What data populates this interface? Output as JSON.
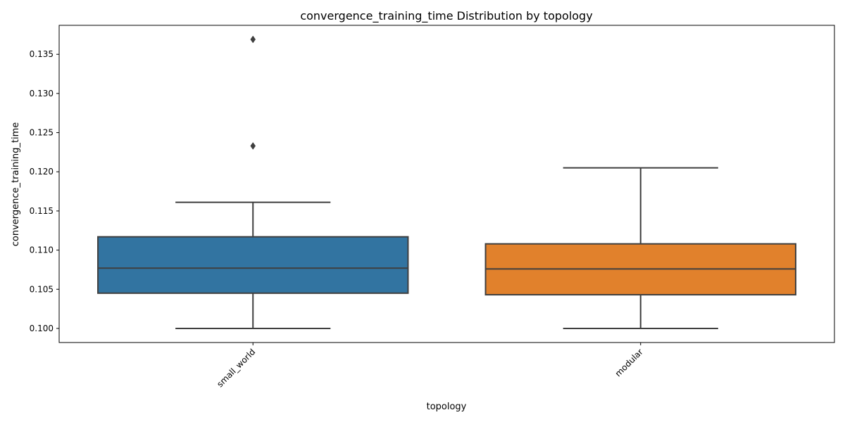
{
  "chart_data": {
    "type": "box",
    "title": "convergence_training_time Distribution by topology",
    "xlabel": "topology",
    "ylabel": "convergence_training_time",
    "categories": [
      "small_world",
      "modular"
    ],
    "ylim": [
      0.0982,
      0.1387
    ],
    "yticks": [
      "0.100",
      "0.105",
      "0.110",
      "0.115",
      "0.120",
      "0.125",
      "0.130",
      "0.135"
    ],
    "ytick_values": [
      0.1,
      0.105,
      0.11,
      0.115,
      0.12,
      0.125,
      0.13,
      0.135
    ],
    "grid": false,
    "legend": "none",
    "boxes": [
      {
        "category": "small_world",
        "color": "#3274a1",
        "whisker_low": 0.1,
        "q1": 0.1045,
        "median": 0.1077,
        "q3": 0.1117,
        "whisker_high": 0.1161,
        "outliers": [
          0.1233,
          0.1369
        ]
      },
      {
        "category": "modular",
        "color": "#e1812c",
        "whisker_low": 0.1,
        "q1": 0.1043,
        "median": 0.1076,
        "q3": 0.1108,
        "whisker_high": 0.1205,
        "outliers": []
      }
    ],
    "line_color": "#3f3f3f"
  }
}
